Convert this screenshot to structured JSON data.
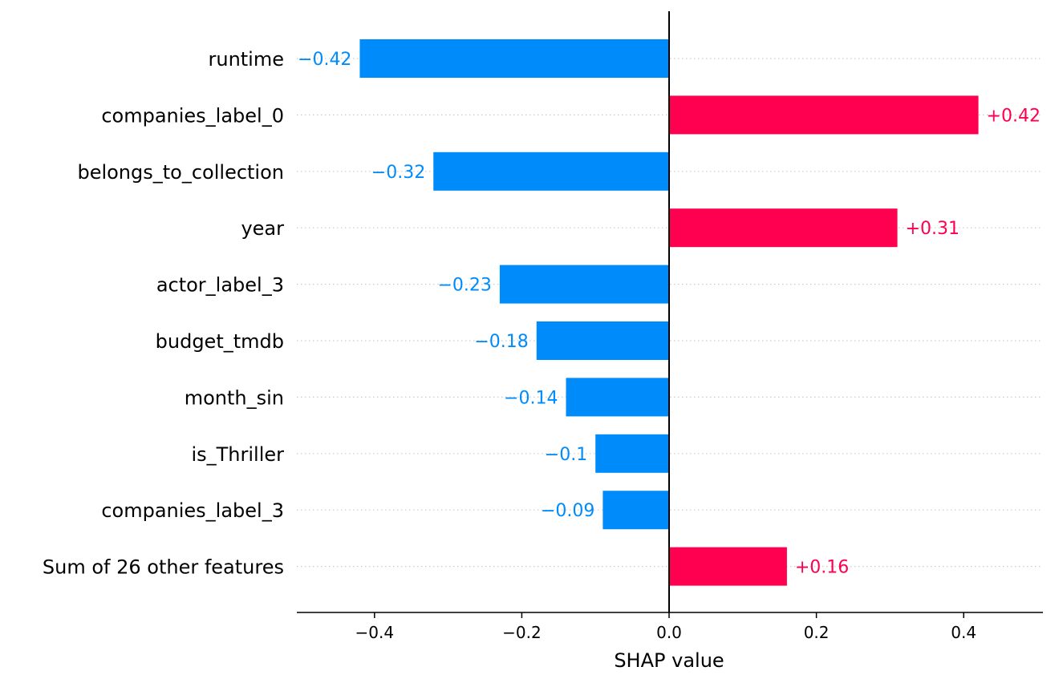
{
  "chart_data": {
    "type": "bar",
    "orientation": "horizontal",
    "title": "",
    "xlabel": "SHAP value",
    "ylabel": "",
    "xlim": [
      -0.5,
      0.5
    ],
    "xticks": [
      -0.4,
      -0.2,
      0.0,
      0.2,
      0.4
    ],
    "xtick_labels": [
      "−0.4",
      "−0.2",
      "0.0",
      "0.2",
      "0.4"
    ],
    "grid": "dotted horizontal guides",
    "legend": "none",
    "colors": {
      "positive": "#ff0051",
      "negative": "#008bfb",
      "zero_line": "#000000",
      "guide_line": "#cccccc"
    },
    "categories": [
      "runtime",
      "companies_label_0",
      "belongs_to_collection",
      "year",
      "actor_label_3",
      "budget_tmdb",
      "month_sin",
      "is_Thriller",
      "companies_label_3",
      "Sum of 26 other features"
    ],
    "values": [
      -0.42,
      0.42,
      -0.32,
      0.31,
      -0.23,
      -0.18,
      -0.14,
      -0.1,
      -0.09,
      0.16
    ],
    "value_labels": [
      "−0.42",
      "+0.42",
      "−0.32",
      "+0.31",
      "−0.23",
      "−0.18",
      "−0.14",
      "−0.1",
      "−0.09",
      "+0.16"
    ]
  }
}
